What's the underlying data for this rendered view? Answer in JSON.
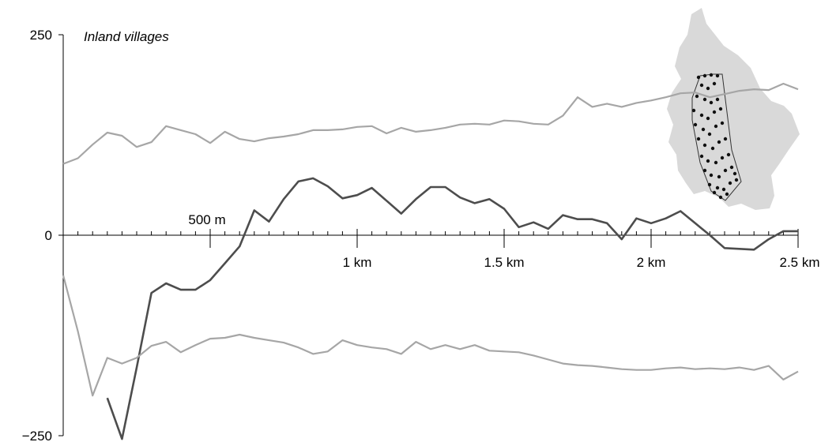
{
  "chart_data": {
    "type": "line",
    "title": "Inland villages",
    "xlabel": "",
    "ylabel": "",
    "xlim": [
      0,
      2.5
    ],
    "ylim": [
      -250,
      250
    ],
    "x_unit": "km",
    "y_ticks": [
      {
        "value": 250,
        "label": "250"
      },
      {
        "value": 0,
        "label": "0"
      },
      {
        "value": -250,
        "label": "−250"
      }
    ],
    "x_ticks": [
      {
        "value": 0.5,
        "label": "500 m"
      },
      {
        "value": 1.0,
        "label": "1 km"
      },
      {
        "value": 1.5,
        "label": "1.5 km"
      },
      {
        "value": 2.0,
        "label": "2 km"
      },
      {
        "value": 2.5,
        "label": "2.5 km"
      }
    ],
    "x": [
      0.0,
      0.05,
      0.1,
      0.15,
      0.2,
      0.25,
      0.3,
      0.35,
      0.4,
      0.45,
      0.5,
      0.55,
      0.6,
      0.65,
      0.7,
      0.75,
      0.8,
      0.85,
      0.9,
      0.95,
      1.0,
      1.05,
      1.1,
      1.15,
      1.2,
      1.25,
      1.3,
      1.35,
      1.4,
      1.45,
      1.5,
      1.55,
      1.6,
      1.65,
      1.7,
      1.75,
      1.8,
      1.85,
      1.9,
      1.95,
      2.0,
      2.05,
      2.1,
      2.15,
      2.2,
      2.25,
      2.3,
      2.35,
      2.4,
      2.45,
      2.5
    ],
    "series": [
      {
        "role": "upper-envelope",
        "color": "#a6a6a6",
        "values": [
          89,
          96,
          113,
          128,
          124,
          110,
          116,
          136,
          131,
          126,
          115,
          129,
          120,
          117,
          121,
          123,
          126,
          131,
          131,
          132,
          135,
          136,
          127,
          134,
          129,
          131,
          134,
          138,
          139,
          138,
          143,
          142,
          139,
          138,
          149,
          172,
          160,
          164,
          160,
          165,
          168,
          172,
          177,
          178,
          172,
          176,
          180,
          182,
          181,
          189,
          182
        ]
      },
      {
        "role": "observed",
        "color": "#4d4d4d",
        "values": [
          null,
          null,
          null,
          -203,
          -254,
          -165,
          -72,
          -60,
          -68,
          -68,
          -56,
          -35,
          -14,
          31,
          17,
          45,
          67,
          71,
          61,
          46,
          50,
          59,
          43,
          27,
          45,
          60,
          60,
          47,
          40,
          45,
          33,
          10,
          16,
          8,
          25,
          20,
          20,
          15,
          -5,
          21,
          15,
          21,
          30,
          15,
          0,
          -16,
          -17,
          -18,
          -5,
          5,
          5
        ]
      },
      {
        "role": "lower-envelope",
        "color": "#a6a6a6",
        "values": [
          -50,
          -120,
          -200,
          -153,
          -160,
          -153,
          -138,
          -133,
          -146,
          -137,
          -129,
          -128,
          -124,
          -128,
          -131,
          -134,
          -140,
          -148,
          -145,
          -131,
          -137,
          -140,
          -142,
          -148,
          -133,
          -142,
          -137,
          -142,
          -137,
          -144,
          -145,
          -146,
          -150,
          -155,
          -160,
          -162,
          -163,
          -165,
          -167,
          -168,
          -168,
          -166,
          -165,
          -167,
          -166,
          -167,
          -165,
          -168,
          -163,
          -180,
          -170
        ]
      }
    ],
    "grid": false,
    "legend": "none"
  }
}
